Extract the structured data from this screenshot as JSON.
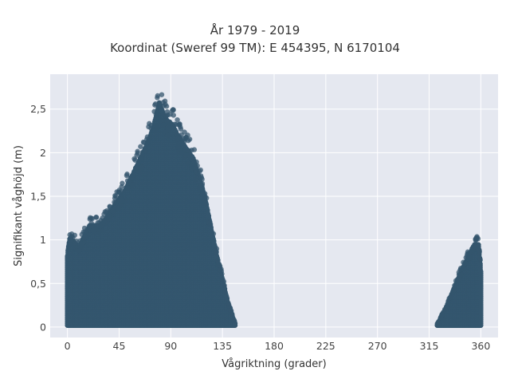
{
  "chart_data": {
    "type": "scatter",
    "title_line1": "År 1979 - 2019",
    "title_line2": "Koordinat (Sweref 99 TM): E 454395, N 6170104",
    "xlabel": "Vågriktning (grader)",
    "ylabel": "Signifikant våghöjd (m)",
    "xlim": [
      -15,
      375
    ],
    "ylim": [
      -0.12,
      2.9
    ],
    "x_ticks": [
      0,
      45,
      90,
      135,
      180,
      225,
      270,
      315,
      360
    ],
    "x_tick_labels": [
      "0",
      "45",
      "90",
      "135",
      "180",
      "225",
      "270",
      "315",
      "360"
    ],
    "y_ticks": [
      0,
      0.5,
      1,
      1.5,
      2,
      2.5
    ],
    "y_tick_labels": [
      "0",
      "0,5",
      "1",
      "1,5",
      "2",
      "2,5"
    ],
    "grid": true,
    "marker_color": "#34566e",
    "plot_background": "#e5e8f0",
    "clusters": [
      {
        "x_range": [
          0,
          146
        ],
        "envelope": [
          {
            "x": 0,
            "y": 0.9
          },
          {
            "x": 2,
            "y": 1.12
          },
          {
            "x": 10,
            "y": 1.0
          },
          {
            "x": 20,
            "y": 1.28
          },
          {
            "x": 30,
            "y": 1.28
          },
          {
            "x": 40,
            "y": 1.5
          },
          {
            "x": 50,
            "y": 1.7
          },
          {
            "x": 60,
            "y": 2.0
          },
          {
            "x": 70,
            "y": 2.3
          },
          {
            "x": 75,
            "y": 2.5
          },
          {
            "x": 80,
            "y": 2.8
          },
          {
            "x": 85,
            "y": 2.6
          },
          {
            "x": 90,
            "y": 2.55
          },
          {
            "x": 100,
            "y": 2.3
          },
          {
            "x": 110,
            "y": 2.1
          },
          {
            "x": 120,
            "y": 1.6
          },
          {
            "x": 130,
            "y": 0.9
          },
          {
            "x": 140,
            "y": 0.3
          },
          {
            "x": 146,
            "y": 0.05
          }
        ]
      },
      {
        "x_range": [
          322,
          360
        ],
        "envelope": [
          {
            "x": 322,
            "y": 0.04
          },
          {
            "x": 330,
            "y": 0.25
          },
          {
            "x": 340,
            "y": 0.6
          },
          {
            "x": 348,
            "y": 0.85
          },
          {
            "x": 355,
            "y": 1.05
          },
          {
            "x": 358,
            "y": 1.05
          },
          {
            "x": 360,
            "y": 0.7
          }
        ]
      }
    ]
  }
}
